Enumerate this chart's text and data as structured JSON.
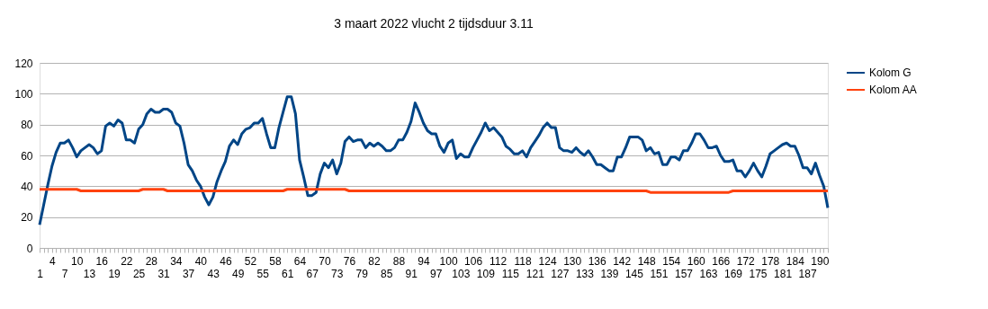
{
  "chart_data": {
    "type": "line",
    "title": "3 maart 2022 vlucht 2 tijdsduur 3.11",
    "categories": [
      "1",
      null,
      null,
      "4",
      null,
      null,
      "7",
      null,
      null,
      "10",
      null,
      null,
      "13",
      null,
      null,
      "16",
      null,
      null,
      "19",
      null,
      null,
      "22",
      null,
      null,
      "25",
      null,
      null,
      "28",
      null,
      null,
      "31",
      null,
      null,
      "34",
      null,
      null,
      "37",
      null,
      null,
      "40",
      null,
      null,
      "43",
      null,
      null,
      "46",
      null,
      null,
      "49",
      null,
      null,
      "52",
      null,
      null,
      "55",
      null,
      null,
      "58",
      null,
      null,
      "61",
      null,
      null,
      "64",
      null,
      null,
      "67",
      null,
      null,
      "70",
      null,
      null,
      "73",
      null,
      null,
      "76",
      null,
      null,
      "79",
      null,
      null,
      "82",
      null,
      null,
      "85",
      null,
      null,
      "88",
      null,
      null,
      "91",
      null,
      null,
      "94",
      null,
      null,
      "97",
      null,
      null,
      "100",
      null,
      null,
      "103",
      null,
      null,
      "106",
      null,
      null,
      "109",
      null,
      null,
      "112",
      null,
      null,
      "115",
      null,
      null,
      "118",
      null,
      null,
      "121",
      null,
      null,
      "124",
      null,
      null,
      "127",
      null,
      null,
      "130",
      null,
      null,
      "133",
      null,
      null,
      "136",
      null,
      null,
      "139",
      null,
      null,
      "142",
      null,
      null,
      "145",
      null,
      null,
      "148",
      null,
      null,
      "151",
      null,
      null,
      "154",
      null,
      null,
      "157",
      null,
      null,
      "160",
      null,
      null,
      "163",
      null,
      null,
      "166",
      null,
      null,
      "169",
      null,
      null,
      "172",
      null,
      null,
      "175",
      null,
      null,
      "178",
      null,
      null,
      "181",
      null,
      null,
      "184",
      null,
      null,
      "187",
      null,
      null,
      "190",
      null,
      null
    ],
    "series": [
      {
        "name": "Kolom G",
        "color": "#004586",
        "values": [
          15,
          28,
          41,
          53,
          62,
          68,
          68,
          70,
          65,
          59,
          63,
          65,
          67,
          65,
          61,
          63,
          79,
          81,
          79,
          83,
          81,
          70,
          70,
          68,
          77,
          80,
          87,
          90,
          88,
          88,
          90,
          90,
          88,
          81,
          79,
          68,
          54,
          50,
          44,
          40,
          33,
          28,
          33,
          43,
          50,
          56,
          66,
          70,
          67,
          74,
          77,
          78,
          81,
          81,
          84,
          74,
          65,
          65,
          78,
          88,
          98,
          98,
          87,
          57,
          46,
          34,
          34,
          36,
          48,
          55,
          52,
          57,
          48,
          55,
          69,
          72,
          69,
          70,
          70,
          65,
          68,
          66,
          68,
          66,
          63,
          63,
          65,
          70,
          70,
          75,
          82,
          94,
          88,
          81,
          76,
          74,
          74,
          66,
          62,
          68,
          70,
          58,
          61,
          59,
          59,
          65,
          70,
          75,
          81,
          76,
          78,
          75,
          72,
          66,
          64,
          61,
          61,
          63,
          59,
          65,
          69,
          73,
          78,
          81,
          78,
          78,
          65,
          63,
          63,
          62,
          65,
          62,
          60,
          63,
          59,
          54,
          54,
          52,
          50,
          50,
          59,
          59,
          65,
          72,
          72,
          72,
          70,
          63,
          65,
          61,
          62,
          54,
          54,
          59,
          59,
          57,
          63,
          63,
          68,
          74,
          74,
          70,
          65,
          65,
          66,
          60,
          56,
          56,
          57,
          50,
          50,
          46,
          50,
          55,
          50,
          46,
          53,
          61,
          63,
          65,
          67,
          68,
          66,
          66,
          60,
          52,
          52,
          48,
          55,
          47,
          40,
          26
        ]
      },
      {
        "name": "Kolom AA",
        "color": "#ff420e",
        "values": [
          38,
          38,
          38,
          38,
          38,
          38,
          38,
          38,
          38,
          38,
          37,
          37,
          37,
          37,
          37,
          37,
          37,
          37,
          37,
          37,
          37,
          37,
          37,
          37,
          37,
          38,
          38,
          38,
          38,
          38,
          38,
          37,
          37,
          37,
          37,
          37,
          37,
          37,
          37,
          37,
          37,
          37,
          37,
          37,
          37,
          37,
          37,
          37,
          37,
          37,
          37,
          37,
          37,
          37,
          37,
          37,
          37,
          37,
          37,
          37,
          38,
          38,
          38,
          38,
          38,
          38,
          38,
          38,
          38,
          38,
          38,
          38,
          38,
          38,
          38,
          37,
          37,
          37,
          37,
          37,
          37,
          37,
          37,
          37,
          37,
          37,
          37,
          37,
          37,
          37,
          37,
          37,
          37,
          37,
          37,
          37,
          37,
          37,
          37,
          37,
          37,
          37,
          37,
          37,
          37,
          37,
          37,
          37,
          37,
          37,
          37,
          37,
          37,
          37,
          37,
          37,
          37,
          37,
          37,
          37,
          37,
          37,
          37,
          37,
          37,
          37,
          37,
          37,
          37,
          37,
          37,
          37,
          37,
          37,
          37,
          37,
          37,
          37,
          37,
          37,
          37,
          37,
          37,
          37,
          37,
          37,
          37,
          37,
          36,
          36,
          36,
          36,
          36,
          36,
          36,
          36,
          36,
          36,
          36,
          36,
          36,
          36,
          36,
          36,
          36,
          36,
          36,
          36,
          37,
          37,
          37,
          37,
          37,
          37,
          37,
          37,
          37,
          37,
          37,
          37,
          37,
          37,
          37,
          37,
          37,
          37,
          37,
          37,
          37,
          37,
          37,
          37
        ]
      }
    ],
    "ylim": [
      0,
      120
    ],
    "yticks": [
      0,
      20,
      40,
      60,
      80,
      100,
      120
    ],
    "grid": "y",
    "legend": "right"
  }
}
